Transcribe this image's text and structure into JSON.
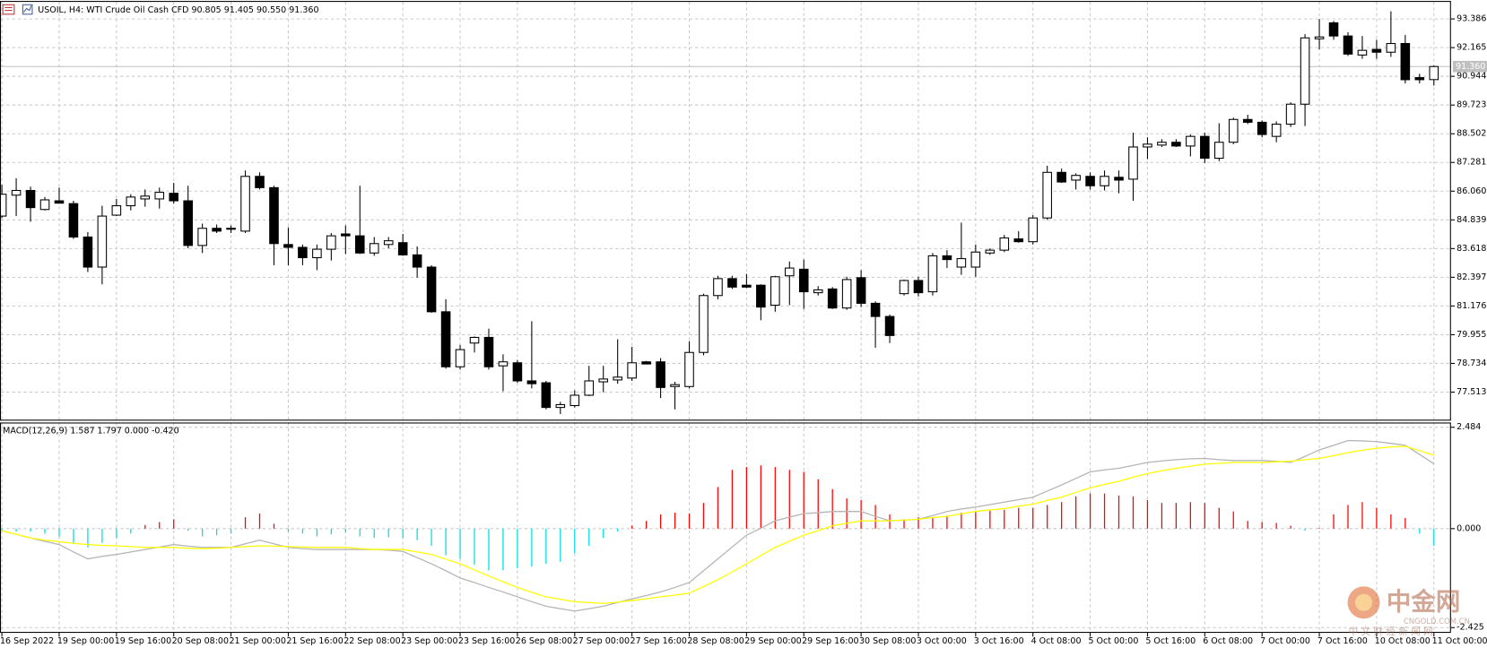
{
  "chart_data": [
    {
      "type": "candlestick",
      "title": "USOIL, H4:  WTI Crude Oil Cash CFD  90.805 91.405 90.550 91.360",
      "categories": [
        "16 Sep 2022",
        null,
        null,
        null,
        "19 Sep 00:00",
        null,
        null,
        null,
        "19 Sep 16:00",
        null,
        null,
        null,
        "20 Sep 08:00",
        null,
        null,
        null,
        "21 Sep 00:00",
        null,
        null,
        null,
        "21 Sep 16:00",
        null,
        null,
        null,
        "22 Sep 08:00",
        null,
        null,
        null,
        "23 Sep 00:00",
        null,
        null,
        null,
        "23 Sep 16:00",
        null,
        null,
        null,
        "26 Sep 08:00",
        null,
        null,
        null,
        "27 Sep 00:00",
        null,
        null,
        null,
        "27 Sep 16:00",
        null,
        null,
        null,
        "28 Sep 08:00",
        null,
        null,
        null,
        "29 Sep 00:00",
        null,
        null,
        null,
        "29 Sep 16:00",
        null,
        null,
        null,
        "30 Sep 08:00",
        null,
        null,
        null,
        "3 Oct 00:00",
        null,
        null,
        null,
        "3 Oct 16:00",
        null,
        null,
        null,
        "4 Oct 08:00",
        null,
        null,
        null,
        "5 Oct 00:00",
        null,
        null,
        null,
        "5 Oct 16:00",
        null,
        null,
        null,
        "6 Oct 08:00",
        null,
        null,
        null,
        "7 Oct 00:00",
        null,
        null,
        null,
        "7 Oct 16:00",
        null,
        null,
        null,
        "10 Oct 08:00",
        null,
        null,
        null,
        "11 Oct 00:00"
      ],
      "open": [
        85.0,
        85.89,
        86.09,
        85.28,
        85.65,
        85.53,
        84.11,
        82.83,
        85.04,
        85.44,
        85.73,
        85.73,
        85.97,
        85.65,
        83.75,
        84.48,
        84.44,
        84.36,
        86.69,
        86.21,
        83.79,
        83.67,
        83.23,
        83.59,
        84.24,
        84.16,
        83.43,
        83.79,
        83.87,
        83.35,
        82.83,
        80.93,
        78.59,
        79.6,
        79.84,
        78.63,
        78.76,
        77.99,
        77.91,
        76.86,
        76.94,
        77.38,
        77.95,
        78.03,
        78.11,
        78.8,
        78.8,
        77.75,
        77.75,
        79.2,
        81.62,
        82.34,
        82.06,
        82.06,
        81.21,
        82.46,
        82.74,
        81.74,
        81.9,
        81.09,
        82.38,
        81.29,
        80.73,
        81.7,
        82.26,
        81.78,
        83.31,
        82.83,
        82.83,
        83.43,
        83.55,
        84.03,
        83.91,
        84.92,
        86.86,
        86.53,
        86.69,
        86.29,
        86.65,
        86.57,
        87.94,
        88.02,
        88.14,
        87.98,
        88.39,
        87.46,
        88.14,
        89.11,
        88.99,
        88.39,
        88.91,
        89.76,
        92.54,
        93.22,
        92.66,
        91.85,
        92.09,
        91.97,
        92.34,
        90.89,
        90.805
      ],
      "high": [
        86.33,
        86.61,
        86.25,
        85.81,
        86.21,
        85.65,
        84.32,
        85.44,
        85.73,
        85.93,
        86.13,
        86.21,
        86.41,
        86.29,
        84.68,
        84.64,
        84.6,
        86.94,
        86.86,
        86.29,
        84.52,
        83.79,
        83.79,
        84.28,
        84.6,
        86.29,
        84.11,
        84.11,
        84.24,
        83.71,
        82.91,
        81.46,
        79.52,
        79.88,
        80.21,
        79.12,
        78.88,
        80.53,
        77.99,
        77.1,
        77.59,
        78.63,
        78.63,
        79.76,
        79.44,
        78.84,
        78.96,
        77.95,
        79.68,
        81.7,
        82.46,
        82.46,
        82.54,
        82.1,
        82.46,
        83.07,
        83.15,
        82.02,
        81.98,
        82.42,
        82.7,
        81.37,
        80.81,
        82.3,
        82.42,
        83.43,
        83.55,
        84.72,
        83.79,
        83.63,
        84.2,
        84.36,
        85.04,
        87.14,
        87.02,
        86.82,
        86.86,
        86.94,
        86.94,
        88.55,
        88.35,
        88.27,
        88.27,
        88.47,
        88.55,
        88.95,
        89.19,
        89.31,
        89.07,
        89.03,
        89.84,
        92.74,
        93.38,
        93.3,
        92.82,
        92.66,
        92.5,
        93.71,
        92.7,
        91.05,
        91.405
      ],
      "low": [
        84.92,
        85.0,
        84.76,
        85.24,
        85.53,
        84.03,
        82.62,
        82.1,
        85.0,
        85.24,
        85.4,
        85.32,
        85.53,
        83.63,
        83.43,
        84.28,
        84.28,
        84.28,
        86.13,
        82.91,
        82.91,
        82.91,
        82.7,
        83.11,
        83.39,
        83.39,
        83.31,
        83.63,
        83.31,
        82.38,
        80.89,
        78.51,
        78.47,
        79.2,
        78.47,
        77.55,
        77.91,
        77.67,
        76.78,
        76.58,
        76.86,
        77.34,
        77.51,
        77.87,
        77.99,
        78.71,
        77.26,
        76.78,
        77.67,
        79.08,
        81.46,
        81.9,
        81.94,
        80.57,
        80.93,
        81.21,
        81.05,
        81.62,
        81.05,
        81.01,
        81.13,
        79.4,
        79.6,
        81.62,
        81.58,
        81.62,
        82.79,
        82.5,
        82.42,
        83.35,
        83.47,
        83.87,
        83.79,
        84.84,
        86.41,
        86.13,
        86.13,
        86.09,
        85.97,
        85.65,
        87.42,
        87.94,
        87.94,
        87.54,
        87.26,
        87.34,
        88.06,
        88.91,
        88.35,
        88.14,
        88.79,
        88.83,
        92.09,
        92.5,
        91.81,
        91.69,
        91.69,
        91.77,
        90.64,
        90.64,
        90.55
      ],
      "close": [
        85.93,
        86.09,
        85.36,
        85.69,
        85.55,
        84.11,
        82.83,
        85.0,
        85.44,
        85.81,
        85.85,
        86.01,
        85.65,
        83.75,
        84.48,
        84.36,
        84.48,
        86.69,
        86.21,
        83.83,
        83.67,
        83.23,
        83.59,
        84.16,
        84.16,
        83.43,
        83.83,
        83.95,
        83.35,
        82.83,
        80.93,
        78.59,
        79.32,
        79.84,
        78.59,
        78.8,
        77.99,
        77.87,
        76.86,
        76.98,
        77.38,
        77.99,
        78.07,
        78.15,
        78.76,
        78.71,
        77.71,
        77.83,
        79.2,
        81.62,
        82.34,
        81.98,
        81.98,
        81.13,
        82.42,
        82.79,
        81.78,
        81.86,
        81.09,
        82.3,
        81.29,
        80.73,
        79.92,
        82.26,
        81.74,
        83.31,
        83.15,
        83.19,
        83.47,
        83.55,
        84.07,
        83.91,
        84.92,
        86.86,
        86.45,
        86.73,
        86.29,
        86.69,
        86.53,
        87.94,
        88.06,
        88.14,
        87.98,
        88.39,
        87.46,
        88.14,
        89.11,
        88.99,
        88.47,
        88.91,
        89.76,
        92.58,
        92.62,
        92.66,
        91.89,
        92.05,
        91.97,
        92.34,
        90.8,
        90.8,
        91.36
      ],
      "up_color": "#ffffff",
      "down_color": "#000000",
      "line_color": "#000000",
      "ylim": [
        76.34,
        94.11
      ],
      "yticks": [
        93.386,
        92.165,
        90.944,
        89.723,
        88.502,
        87.281,
        {
          "value": 86.06,
          "label": "86.060"
        },
        84.839,
        83.618,
        82.397,
        81.176,
        79.955,
        78.734,
        77.513
      ],
      "last_price": {
        "value": 91.36,
        "label": "91.360"
      },
      "grid": true
    },
    {
      "type": "macd",
      "label": "MACD(12,26,9) 1.587 1.797 0.000 -0.420",
      "histogram": {
        "up_color": "#ff0000",
        "down_color": "#00e0e0",
        "values": [
          -0.05,
          -0.07,
          -0.07,
          -0.12,
          -0.19,
          -0.35,
          -0.46,
          -0.35,
          -0.23,
          -0.12,
          0.09,
          0.16,
          0.23,
          -0.05,
          -0.19,
          -0.16,
          -0.12,
          0.28,
          0.37,
          0.12,
          -0.07,
          -0.12,
          -0.19,
          -0.14,
          -0.09,
          -0.19,
          -0.23,
          -0.21,
          -0.23,
          -0.28,
          -0.42,
          -0.65,
          -0.74,
          -0.88,
          -1.02,
          -1.02,
          -0.97,
          -0.93,
          -0.86,
          -0.81,
          -0.6,
          -0.42,
          -0.23,
          -0.07,
          0.07,
          0.19,
          0.35,
          0.39,
          0.37,
          0.63,
          1.02,
          1.44,
          1.51,
          1.55,
          1.51,
          1.44,
          1.39,
          1.21,
          0.97,
          0.74,
          0.7,
          0.58,
          0.35,
          0.23,
          0.28,
          0.28,
          0.32,
          0.39,
          0.42,
          0.44,
          0.46,
          0.51,
          0.51,
          0.58,
          0.65,
          0.79,
          0.86,
          0.86,
          0.81,
          0.79,
          0.7,
          0.63,
          0.63,
          0.65,
          0.63,
          0.51,
          0.42,
          0.19,
          0.16,
          0.14,
          0.07,
          -0.05,
          0.02,
          0.35,
          0.58,
          0.65,
          0.51,
          0.35,
          0.26,
          -0.12,
          -0.42
        ]
      },
      "lines": [
        {
          "color": "#b4b4b4",
          "values": [
            -0.05,
            -0.14,
            -0.23,
            -0.31,
            -0.39,
            -0.57,
            -0.74,
            -0.68,
            -0.63,
            -0.57,
            -0.51,
            -0.45,
            -0.39,
            -0.43,
            -0.46,
            -0.46,
            -0.46,
            -0.37,
            -0.28,
            -0.37,
            -0.46,
            -0.49,
            -0.51,
            -0.51,
            -0.51,
            -0.51,
            -0.51,
            -0.53,
            -0.56,
            -0.71,
            -0.86,
            -1.03,
            -1.21,
            -1.32,
            -1.44,
            -1.55,
            -1.67,
            -1.79,
            -1.9,
            -1.96,
            -2.02,
            -1.96,
            -1.9,
            -1.81,
            -1.72,
            -1.64,
            -1.55,
            -1.44,
            -1.32,
            -1.03,
            -0.74,
            -0.45,
            -0.16,
            0.01,
            0.19,
            0.28,
            0.37,
            0.39,
            0.42,
            0.42,
            0.42,
            0.3,
            0.19,
            0.21,
            0.23,
            0.32,
            0.42,
            0.48,
            0.53,
            0.59,
            0.65,
            0.71,
            0.77,
            0.92,
            1.07,
            1.23,
            1.39,
            1.44,
            1.48,
            1.55,
            1.62,
            1.66,
            1.69,
            1.71,
            1.72,
            1.69,
            1.67,
            1.67,
            1.67,
            1.65,
            1.62,
            1.77,
            1.93,
            2.04,
            2.16,
            2.15,
            2.13,
            2.09,
            2.04,
            1.82,
            1.59
          ]
        },
        {
          "color": "#ffff00",
          "values": [
            -0.05,
            -0.14,
            -0.23,
            -0.28,
            -0.32,
            -0.36,
            -0.39,
            -0.41,
            -0.42,
            -0.44,
            -0.46,
            -0.46,
            -0.46,
            -0.48,
            -0.49,
            -0.48,
            -0.46,
            -0.44,
            -0.42,
            -0.43,
            -0.44,
            -0.45,
            -0.46,
            -0.46,
            -0.46,
            -0.49,
            -0.51,
            -0.51,
            -0.51,
            -0.57,
            -0.63,
            -0.75,
            -0.86,
            -1.01,
            -1.16,
            -1.3,
            -1.44,
            -1.56,
            -1.67,
            -1.73,
            -1.79,
            -1.81,
            -1.83,
            -1.8,
            -1.76,
            -1.72,
            -1.67,
            -1.63,
            -1.58,
            -1.42,
            -1.25,
            -1.06,
            -0.86,
            -0.66,
            -0.46,
            -0.31,
            -0.16,
            -0.05,
            0.07,
            0.13,
            0.19,
            0.19,
            0.19,
            0.21,
            0.23,
            0.27,
            0.3,
            0.36,
            0.42,
            0.46,
            0.49,
            0.55,
            0.6,
            0.69,
            0.77,
            0.89,
            1.0,
            1.08,
            1.16,
            1.26,
            1.35,
            1.42,
            1.48,
            1.53,
            1.58,
            1.6,
            1.62,
            1.62,
            1.62,
            1.64,
            1.65,
            1.69,
            1.72,
            1.79,
            1.86,
            1.92,
            1.97,
            2.0,
            2.02,
            1.91,
            1.8
          ]
        }
      ],
      "ylim": [
        -2.553,
        2.6
      ],
      "yticks": [
        2.484,
        {
          "value": 0,
          "label": "0.000"
        },
        -2.425
      ],
      "grid": true
    }
  ],
  "watermark": {
    "name": "中金网",
    "site": "CNGOLD.COM.CN",
    "tagline": "中 文 财 经 新 闻 网"
  }
}
